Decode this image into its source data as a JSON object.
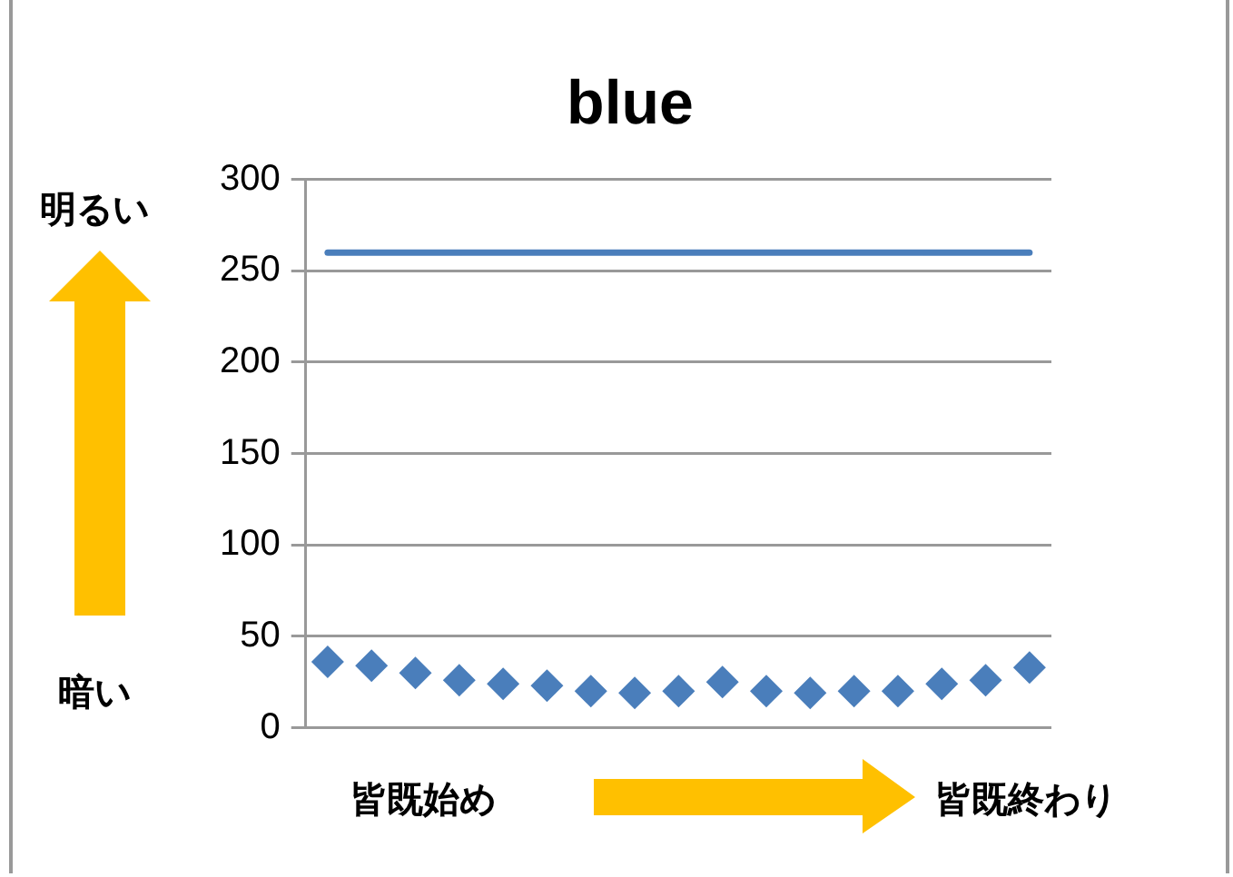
{
  "chart_data": {
    "type": "line",
    "title": "blue",
    "categories": [
      null,
      null,
      null,
      null,
      null,
      null,
      null,
      null,
      null,
      null,
      null,
      null,
      null,
      null,
      null,
      null,
      null
    ],
    "series": [
      {
        "marker": "none",
        "color": "#4a7ebb",
        "values": [
          260,
          260,
          260,
          260,
          260,
          260,
          260,
          260,
          260,
          260,
          260,
          260,
          260,
          260,
          260,
          260,
          260
        ]
      },
      {
        "type": "scatter",
        "marker": "diamond",
        "color": "#4a7ebb",
        "values": [
          36,
          34,
          30,
          26,
          24,
          23,
          20,
          19,
          20,
          25,
          20,
          19,
          20,
          20,
          24,
          26,
          33
        ]
      }
    ],
    "ylim": [
      0,
      300
    ],
    "yticks": [
      0,
      50,
      100,
      150,
      200,
      250,
      300
    ],
    "grid": "y",
    "legend": false,
    "annotations": [
      "明るい",
      "暗い",
      "皆既始め",
      "皆既終わり"
    ]
  }
}
